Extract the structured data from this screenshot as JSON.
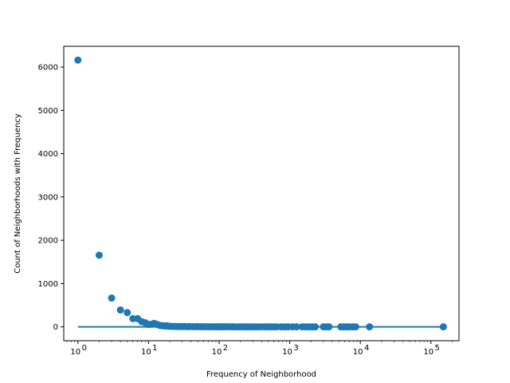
{
  "chart_data": {
    "type": "scatter",
    "title": "",
    "xlabel": "Frequency of Neighborhood",
    "ylabel": "Count of Neighborhoods with Frequency",
    "xscale": "log",
    "xlim": [
      0.63,
      250000
    ],
    "ylim": [
      -320,
      6480
    ],
    "x_ticks": [
      {
        "value": 1,
        "base": "10",
        "exp": "0"
      },
      {
        "value": 10,
        "base": "10",
        "exp": "1"
      },
      {
        "value": 100,
        "base": "10",
        "exp": "2"
      },
      {
        "value": 1000,
        "base": "10",
        "exp": "3"
      },
      {
        "value": 10000,
        "base": "10",
        "exp": "4"
      },
      {
        "value": 100000,
        "base": "10",
        "exp": "5"
      }
    ],
    "y_ticks": [
      0,
      1000,
      2000,
      3000,
      4000,
      5000,
      6000
    ],
    "grid": false,
    "color": "#1f77b4",
    "trend_line": {
      "x": [
        1,
        150000
      ],
      "y": [
        0,
        0
      ]
    },
    "series": [
      {
        "points": [
          [
            1,
            6160
          ],
          [
            2,
            1655
          ],
          [
            3,
            665
          ],
          [
            4,
            390
          ],
          [
            5,
            330
          ],
          [
            6,
            190
          ],
          [
            7,
            190
          ],
          [
            8,
            120
          ],
          [
            9,
            95
          ],
          [
            10,
            55
          ],
          [
            11,
            60
          ],
          [
            12,
            80
          ],
          [
            13,
            60
          ],
          [
            14,
            40
          ],
          [
            15,
            30
          ],
          [
            16,
            25
          ],
          [
            17,
            20
          ],
          [
            18,
            25
          ],
          [
            19,
            15
          ],
          [
            20,
            15
          ],
          [
            22,
            10
          ],
          [
            24,
            10
          ],
          [
            26,
            8
          ],
          [
            28,
            8
          ],
          [
            30,
            6
          ],
          [
            32,
            10
          ],
          [
            35,
            5
          ],
          [
            38,
            6
          ],
          [
            42,
            5
          ],
          [
            46,
            4
          ],
          [
            50,
            4
          ],
          [
            55,
            3
          ],
          [
            60,
            3
          ],
          [
            66,
            3
          ],
          [
            72,
            2
          ],
          [
            80,
            2
          ],
          [
            88,
            2
          ],
          [
            96,
            2
          ],
          [
            105,
            2
          ],
          [
            115,
            2
          ],
          [
            125,
            2
          ],
          [
            140,
            2
          ],
          [
            155,
            2
          ],
          [
            170,
            1
          ],
          [
            190,
            1
          ],
          [
            210,
            1
          ],
          [
            230,
            1
          ],
          [
            250,
            1
          ],
          [
            270,
            1
          ],
          [
            300,
            1
          ],
          [
            330,
            1
          ],
          [
            360,
            1
          ],
          [
            400,
            1
          ],
          [
            450,
            1
          ],
          [
            500,
            1
          ],
          [
            550,
            1
          ],
          [
            600,
            1
          ],
          [
            650,
            1
          ],
          [
            750,
            1
          ],
          [
            850,
            1
          ],
          [
            950,
            1
          ],
          [
            1100,
            1
          ],
          [
            1250,
            1
          ],
          [
            1500,
            1
          ],
          [
            1700,
            1
          ],
          [
            1900,
            1
          ],
          [
            2100,
            1
          ],
          [
            2300,
            1
          ],
          [
            3000,
            1
          ],
          [
            3300,
            1
          ],
          [
            3600,
            1
          ],
          [
            5300,
            1
          ],
          [
            5800,
            1
          ],
          [
            6400,
            1
          ],
          [
            7000,
            1
          ],
          [
            7800,
            1
          ],
          [
            8600,
            1
          ],
          [
            13500,
            1
          ],
          [
            150000,
            1
          ]
        ]
      }
    ]
  }
}
